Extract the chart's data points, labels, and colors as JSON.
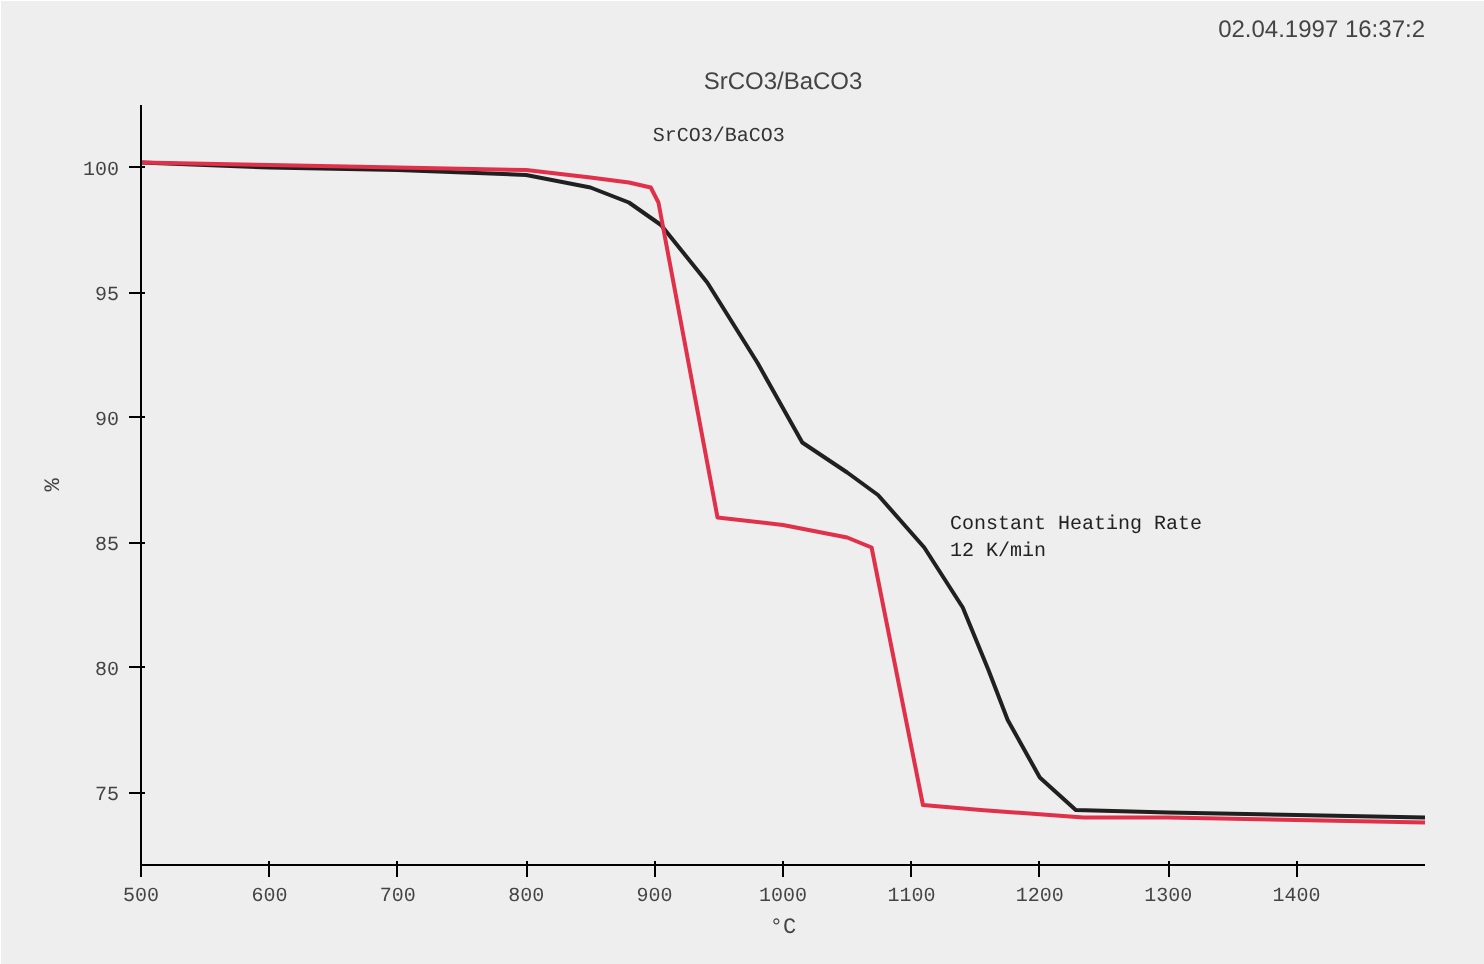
{
  "chart_data": {
    "type": "line",
    "title": "SrCO3/BaCO3",
    "subtitle": "SrCO3/BaCO3",
    "xlabel": "°C",
    "ylabel": "%",
    "xlim": [
      500,
      1500
    ],
    "ylim": [
      72.1,
      102.5
    ],
    "xticks": [
      500,
      600,
      700,
      800,
      900,
      1000,
      1100,
      1200,
      1300,
      1400
    ],
    "yticks": [
      75,
      80,
      85,
      90,
      95,
      100
    ],
    "grid": false,
    "marker": "none",
    "line_style": "solid",
    "annotations": [
      "02.04.1997 16:37:2",
      "Constant Heating Rate\n12 K/min"
    ],
    "series": [
      {
        "color": "#202020",
        "x": [
          500,
          600,
          700,
          800,
          850,
          880,
          905,
          941,
          980,
          1015,
          1050,
          1074,
          1110,
          1140,
          1160,
          1175,
          1200,
          1228,
          1300,
          1400,
          1500
        ],
        "values": [
          100.2,
          100.0,
          99.9,
          99.7,
          99.2,
          98.6,
          97.7,
          95.4,
          92.2,
          89.0,
          87.8,
          86.9,
          84.8,
          82.4,
          79.9,
          77.9,
          75.6,
          74.3,
          74.2,
          74.1,
          74.0
        ]
      },
      {
        "color": "#e0304a",
        "x": [
          500,
          600,
          700,
          800,
          850,
          880,
          897,
          903,
          949,
          1000,
          1050,
          1069,
          1109,
          1154,
          1234,
          1300,
          1400,
          1500
        ],
        "values": [
          100.2,
          100.1,
          100.0,
          99.9,
          99.6,
          99.4,
          99.2,
          98.6,
          86.0,
          85.7,
          85.2,
          84.8,
          74.5,
          74.3,
          74.0,
          74.0,
          73.9,
          73.8
        ]
      }
    ]
  }
}
